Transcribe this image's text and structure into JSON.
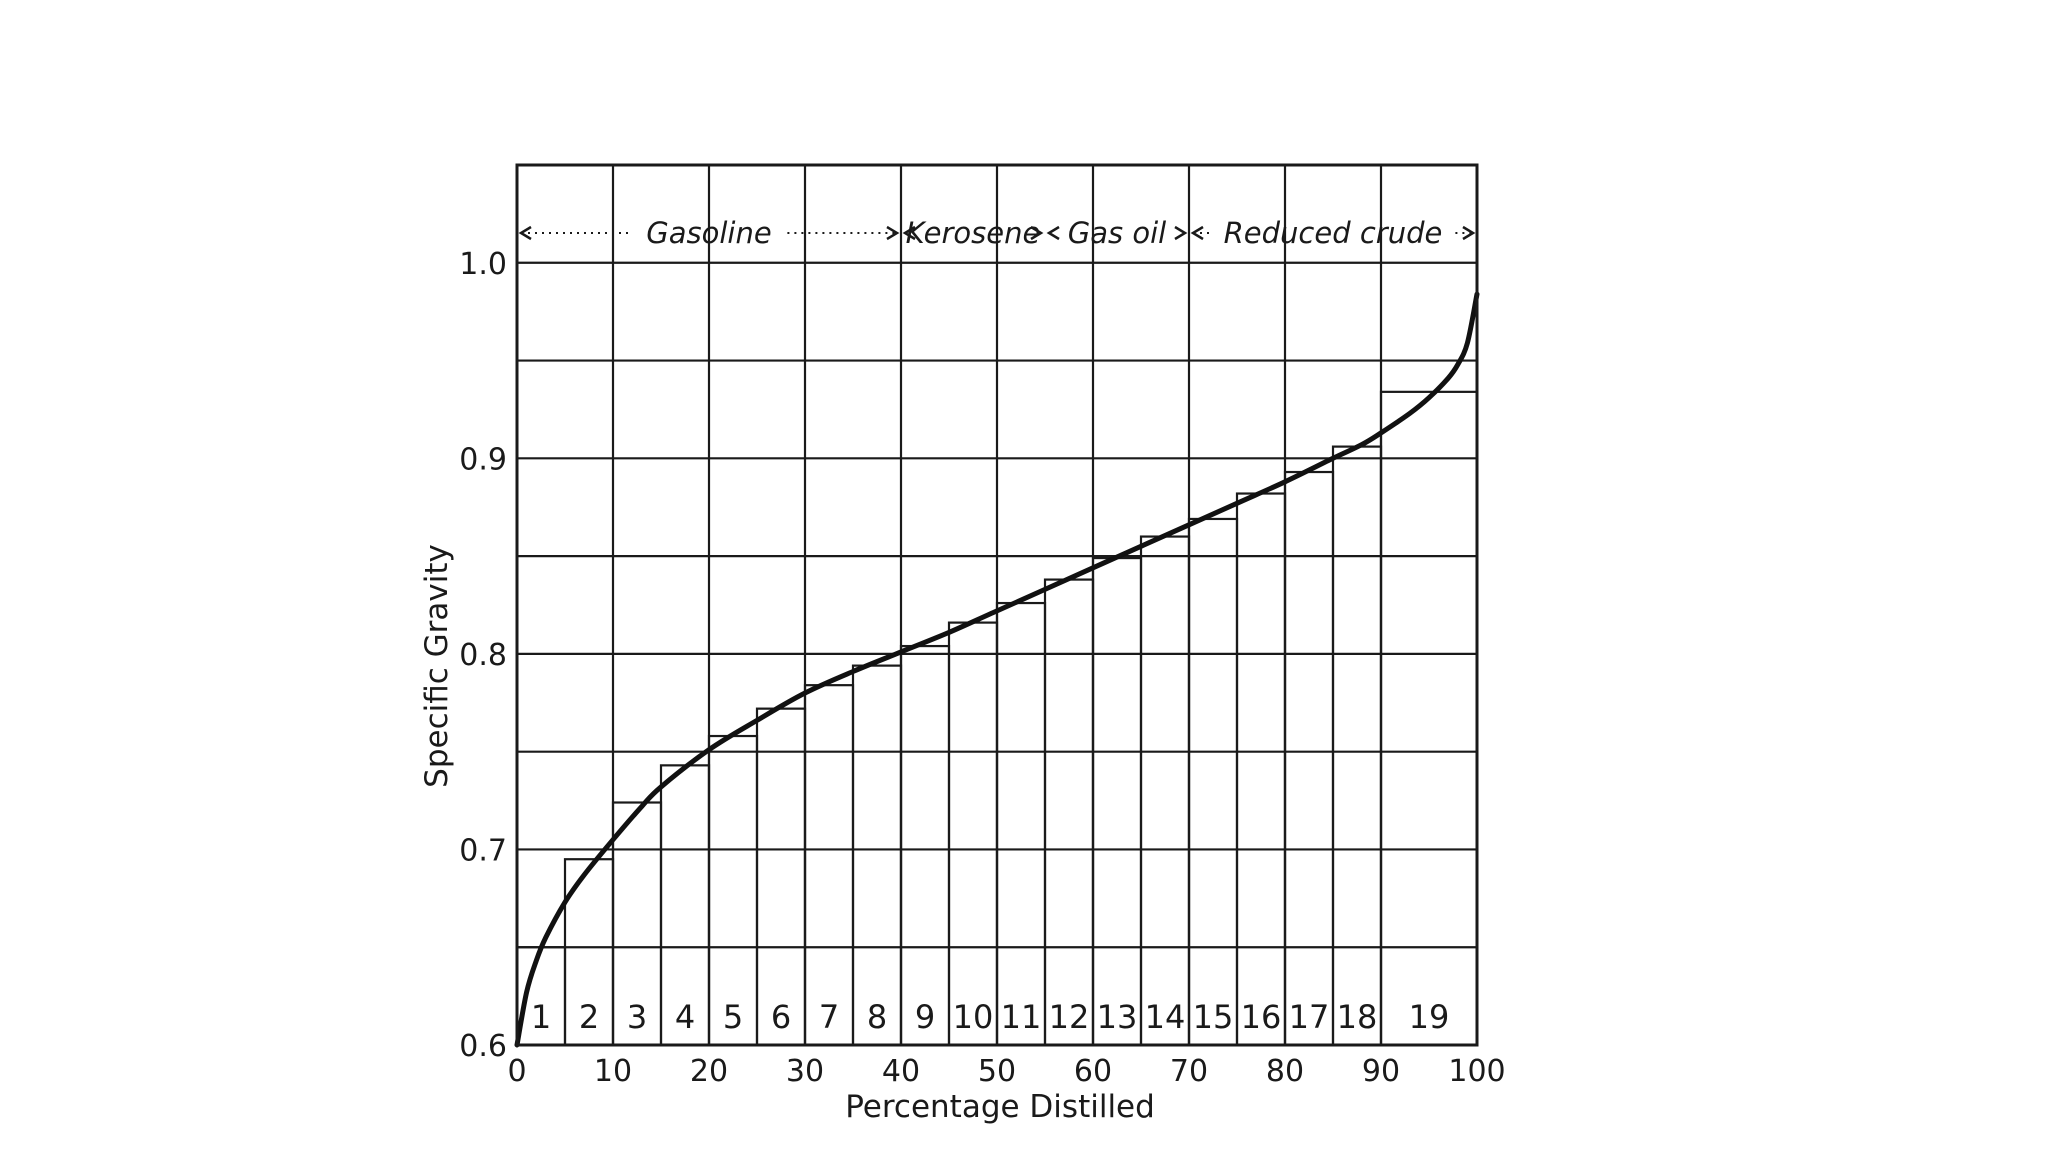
{
  "chart_data": {
    "type": "bar",
    "title": "",
    "xlabel": "Percentage Distilled",
    "ylabel": "Specific Gravity",
    "xlim": [
      0,
      100
    ],
    "ylim": [
      0.6,
      1.05
    ],
    "x_ticks": [
      {
        "value": 0,
        "label": "0"
      },
      {
        "value": 10,
        "label": "10"
      },
      {
        "value": 20,
        "label": "20"
      },
      {
        "value": 30,
        "label": "30"
      },
      {
        "value": 40,
        "label": "40"
      },
      {
        "value": 50,
        "label": "50"
      },
      {
        "value": 60,
        "label": "60"
      },
      {
        "value": 70,
        "label": "70"
      },
      {
        "value": 80,
        "label": "80"
      },
      {
        "value": 90,
        "label": "90"
      },
      {
        "value": 100,
        "label": "100"
      }
    ],
    "y_ticks": [
      {
        "value": 0.6,
        "label": "0.6"
      },
      {
        "value": 0.7,
        "label": "0.7"
      },
      {
        "value": 0.8,
        "label": "0.8"
      },
      {
        "value": 0.9,
        "label": "0.9"
      },
      {
        "value": 1.0,
        "label": "1.0"
      }
    ],
    "grid": true,
    "cuts": [
      {
        "label": "1",
        "x_start": 0,
        "x_end": 5,
        "value": 0.65
      },
      {
        "label": "2",
        "x_start": 5,
        "x_end": 10,
        "value": 0.695
      },
      {
        "label": "3",
        "x_start": 10,
        "x_end": 15,
        "value": 0.724
      },
      {
        "label": "4",
        "x_start": 15,
        "x_end": 20,
        "value": 0.743
      },
      {
        "label": "5",
        "x_start": 20,
        "x_end": 25,
        "value": 0.758
      },
      {
        "label": "6",
        "x_start": 25,
        "x_end": 30,
        "value": 0.772
      },
      {
        "label": "7",
        "x_start": 30,
        "x_end": 35,
        "value": 0.784
      },
      {
        "label": "8",
        "x_start": 35,
        "x_end": 40,
        "value": 0.794
      },
      {
        "label": "9",
        "x_start": 40,
        "x_end": 45,
        "value": 0.804
      },
      {
        "label": "10",
        "x_start": 45,
        "x_end": 50,
        "value": 0.816
      },
      {
        "label": "11",
        "x_start": 50,
        "x_end": 55,
        "value": 0.826
      },
      {
        "label": "12",
        "x_start": 55,
        "x_end": 60,
        "value": 0.838
      },
      {
        "label": "13",
        "x_start": 60,
        "x_end": 65,
        "value": 0.849
      },
      {
        "label": "14",
        "x_start": 65,
        "x_end": 70,
        "value": 0.86
      },
      {
        "label": "15",
        "x_start": 70,
        "x_end": 75,
        "value": 0.869
      },
      {
        "label": "16",
        "x_start": 75,
        "x_end": 80,
        "value": 0.882
      },
      {
        "label": "17",
        "x_start": 80,
        "x_end": 85,
        "value": 0.893
      },
      {
        "label": "18",
        "x_start": 85,
        "x_end": 90,
        "value": 0.906
      },
      {
        "label": "19",
        "x_start": 90,
        "x_end": 100,
        "value": 0.934
      }
    ],
    "curve": {
      "x": [
        0,
        1,
        2,
        3,
        5,
        7,
        10,
        13,
        15,
        20,
        25,
        30,
        35,
        40,
        45,
        50,
        55,
        60,
        65,
        70,
        75,
        80,
        85,
        88,
        90,
        93,
        95,
        97,
        98,
        99,
        100
      ],
      "y": [
        0.6,
        0.627,
        0.643,
        0.655,
        0.673,
        0.687,
        0.705,
        0.722,
        0.732,
        0.751,
        0.766,
        0.78,
        0.791,
        0.801,
        0.811,
        0.822,
        0.833,
        0.844,
        0.855,
        0.866,
        0.877,
        0.888,
        0.9,
        0.907,
        0.913,
        0.923,
        0.931,
        0.941,
        0.948,
        0.959,
        0.984
      ]
    },
    "bands": [
      {
        "label": "Gasoline",
        "x_start": 0,
        "x_end": 40
      },
      {
        "label": "Kerosene",
        "x_start": 40,
        "x_end": 55
      },
      {
        "label": "Gas oil",
        "x_start": 55,
        "x_end": 70
      },
      {
        "label": "Reduced crude",
        "x_start": 70,
        "x_end": 100
      }
    ]
  }
}
